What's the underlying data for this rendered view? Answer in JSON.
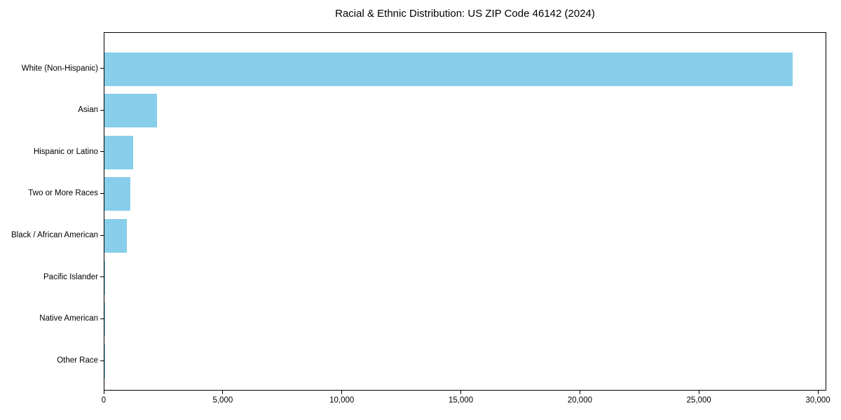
{
  "title": "Racial & Ethnic Distribution: US ZIP Code 46142 (2024)",
  "chart_data": {
    "type": "bar",
    "orientation": "horizontal",
    "title": "Racial & Ethnic Distribution: US ZIP Code 46142 (2024)",
    "xlabel": "",
    "ylabel": "",
    "categories": [
      "White (Non-Hispanic)",
      "Asian",
      "Hispanic or Latino",
      "Two or More Races",
      "Black / African American",
      "Pacific Islander",
      "Native American",
      "Other Race"
    ],
    "values": [
      28900,
      2200,
      1200,
      1100,
      950,
      40,
      20,
      10
    ],
    "xlim": [
      0,
      30350
    ],
    "xticks": [
      0,
      5000,
      10000,
      15000,
      20000,
      25000,
      30000
    ],
    "xtick_labels": [
      "0",
      "5,000",
      "10,000",
      "15,000",
      "20,000",
      "25,000",
      "30,000"
    ],
    "bar_color": "#87CEEB",
    "grid": false,
    "legend": null,
    "axis_color": "#000000",
    "background_color": "#FFFFFF",
    "text_color": "#000000"
  }
}
